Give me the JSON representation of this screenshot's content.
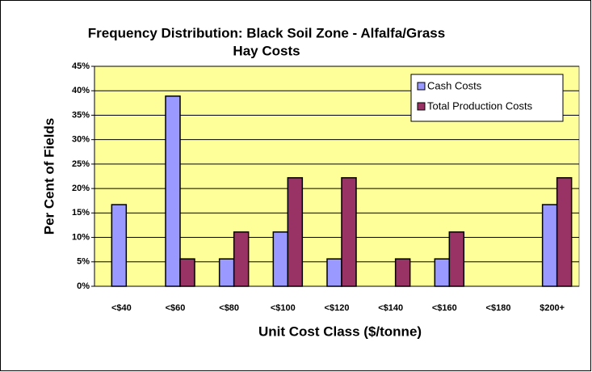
{
  "chart_data": {
    "type": "bar",
    "title": [
      "Frequency Distribution: Black Soil Zone - Alfalfa/Grass",
      "Hay Costs"
    ],
    "x_label": "Unit Cost Class ($/tonne)",
    "y_label": "Per Cent of Fields",
    "categories": [
      "<$40",
      "<$60",
      "<$80",
      "<$100",
      "<$120",
      "<$140",
      "<$160",
      "<$180",
      "$200+"
    ],
    "series": [
      {
        "name": "Cash Costs",
        "color": "#9999ff",
        "values": [
          16.7,
          38.9,
          5.6,
          11.1,
          5.6,
          0,
          5.6,
          0,
          16.7
        ]
      },
      {
        "name": "Total Production Costs",
        "color": "#993366",
        "values": [
          0,
          5.6,
          11.1,
          22.2,
          22.2,
          5.6,
          11.1,
          0,
          22.2
        ]
      }
    ],
    "ylim": [
      0,
      45
    ],
    "yticks": [
      {
        "value": 0,
        "label": "0%"
      },
      {
        "value": 5,
        "label": "5%"
      },
      {
        "value": 10,
        "label": "10%"
      },
      {
        "value": 15,
        "label": "15%"
      },
      {
        "value": 20,
        "label": "20%"
      },
      {
        "value": 25,
        "label": "25%"
      },
      {
        "value": 30,
        "label": "30%"
      },
      {
        "value": 35,
        "label": "35%"
      },
      {
        "value": 40,
        "label": "40%"
      },
      {
        "value": 45,
        "label": "45%"
      }
    ],
    "grid": true,
    "legend": "upper right",
    "plot_background": "#ffff99"
  }
}
